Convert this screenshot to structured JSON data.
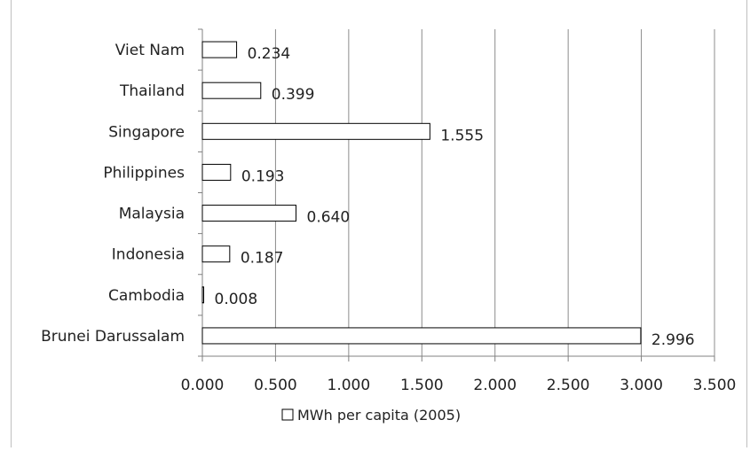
{
  "chart_data": {
    "type": "bar",
    "orientation": "horizontal",
    "categories": [
      "Brunei Darussalam",
      "Cambodia",
      "Indonesia",
      "Malaysia",
      "Philippines",
      "Singapore",
      "Thailand",
      "Viet Nam"
    ],
    "series": [
      {
        "name": "MWh per capita (2005)",
        "values": [
          2.996,
          0.008,
          0.187,
          0.64,
          0.193,
          1.555,
          0.399,
          0.234
        ],
        "labels": [
          "2.996",
          "0.008",
          "0.187",
          "0.640",
          "0.193",
          "1.555",
          "0.399",
          "0.234"
        ]
      }
    ],
    "xlim": [
      0,
      3.5
    ],
    "xticks": [
      0,
      0.5,
      1.0,
      1.5,
      2.0,
      2.5,
      3.0,
      3.5
    ],
    "xtick_labels": [
      "0.000",
      "0.500",
      "1.000",
      "1.500",
      "2.000",
      "2.500",
      "3.000",
      "3.500"
    ],
    "grid": "vertical",
    "legend": "bottom",
    "bar_fill": "#ffffff",
    "bar_stroke": "#000000",
    "grid_color": "#8c8c8c"
  }
}
